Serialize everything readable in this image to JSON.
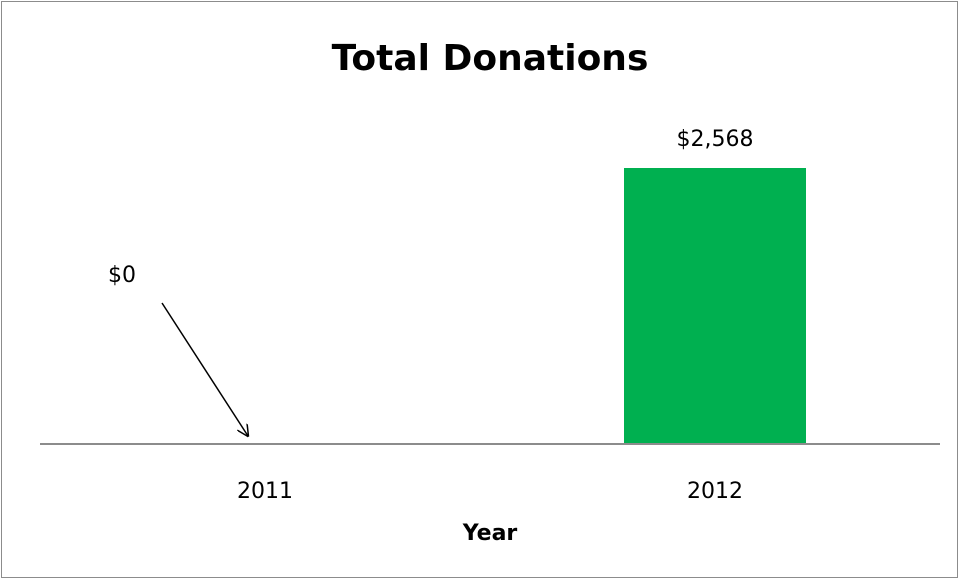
{
  "chart_data": {
    "type": "bar",
    "title": "Total Donations",
    "xlabel": "Year",
    "ylabel": "",
    "categories": [
      "2011",
      "2012"
    ],
    "values": [
      0,
      2568
    ],
    "data_labels": [
      "$0",
      "$2,568"
    ],
    "ylim": [
      0,
      3000
    ],
    "grid": false,
    "legend": "none",
    "bar_color": "#00b050",
    "axis_color": "#8c8c8c",
    "annotations": [
      {
        "category": "2011",
        "type": "arrow",
        "label": "$0"
      }
    ]
  }
}
